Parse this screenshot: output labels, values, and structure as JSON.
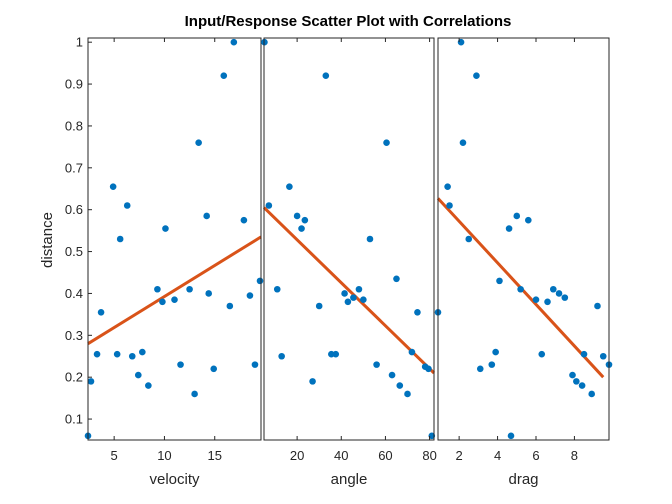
{
  "chart_data": {
    "type": "scatter",
    "title": "Input/Response Scatter Plot with Correlations",
    "ylabel": "distance",
    "ylim": [
      0.05,
      1.01
    ],
    "yticks": [
      0.1,
      0.2,
      0.3,
      0.4,
      0.5,
      0.6,
      0.7,
      0.8,
      0.9,
      1
    ],
    "grid": false,
    "colors": {
      "points": "#0072BD",
      "fit": "#D95319",
      "axes": "#262626"
    },
    "panels": [
      {
        "xlabel": "velocity",
        "xlim": [
          2.4,
          19.6
        ],
        "xticks": [
          5,
          10,
          15
        ],
        "points": [
          [
            2.4,
            0.06
          ],
          [
            2.7,
            0.19
          ],
          [
            3.3,
            0.255
          ],
          [
            3.7,
            0.355
          ],
          [
            4.9,
            0.655
          ],
          [
            5.3,
            0.255
          ],
          [
            5.6,
            0.53
          ],
          [
            6.3,
            0.61
          ],
          [
            6.8,
            0.25
          ],
          [
            7.4,
            0.205
          ],
          [
            7.8,
            0.26
          ],
          [
            8.4,
            0.18
          ],
          [
            9.3,
            0.41
          ],
          [
            9.8,
            0.38
          ],
          [
            10.1,
            0.555
          ],
          [
            11.0,
            0.385
          ],
          [
            11.6,
            0.23
          ],
          [
            12.5,
            0.41
          ],
          [
            13.0,
            0.16
          ],
          [
            13.4,
            0.76
          ],
          [
            14.2,
            0.585
          ],
          [
            14.4,
            0.4
          ],
          [
            14.9,
            0.22
          ],
          [
            15.9,
            0.92
          ],
          [
            16.5,
            0.37
          ],
          [
            16.9,
            1.0
          ],
          [
            17.9,
            0.575
          ],
          [
            18.5,
            0.395
          ],
          [
            19.0,
            0.23
          ],
          [
            19.5,
            0.43
          ]
        ],
        "fit": [
          [
            2.4,
            0.28
          ],
          [
            19.6,
            0.535
          ]
        ]
      },
      {
        "xlabel": "angle",
        "xlim": [
          5,
          82
        ],
        "xticks": [
          20,
          40,
          60,
          80
        ],
        "points": [
          [
            5.2,
            1.0
          ],
          [
            7.2,
            0.61
          ],
          [
            11.0,
            0.41
          ],
          [
            13.0,
            0.25
          ],
          [
            16.5,
            0.655
          ],
          [
            20.0,
            0.585
          ],
          [
            22.0,
            0.555
          ],
          [
            23.5,
            0.575
          ],
          [
            27.0,
            0.19
          ],
          [
            30.0,
            0.37
          ],
          [
            33.0,
            0.92
          ],
          [
            35.5,
            0.255
          ],
          [
            37.5,
            0.255
          ],
          [
            41.5,
            0.4
          ],
          [
            43.0,
            0.38
          ],
          [
            45.5,
            0.39
          ],
          [
            48.0,
            0.41
          ],
          [
            50.0,
            0.385
          ],
          [
            53.0,
            0.53
          ],
          [
            56.0,
            0.23
          ],
          [
            60.5,
            0.76
          ],
          [
            63.0,
            0.205
          ],
          [
            65.0,
            0.435
          ],
          [
            66.5,
            0.18
          ],
          [
            70.0,
            0.16
          ],
          [
            72.0,
            0.26
          ],
          [
            74.5,
            0.355
          ],
          [
            78.0,
            0.225
          ],
          [
            79.5,
            0.22
          ],
          [
            81.0,
            0.06
          ]
        ],
        "fit": [
          [
            5,
            0.605
          ],
          [
            82,
            0.21
          ]
        ]
      },
      {
        "xlabel": "drag",
        "xlim": [
          0.9,
          9.8
        ],
        "xticks": [
          2,
          4,
          6,
          8
        ],
        "points": [
          [
            0.9,
            0.355
          ],
          [
            1.4,
            0.655
          ],
          [
            1.5,
            0.61
          ],
          [
            2.1,
            1.0
          ],
          [
            2.2,
            0.76
          ],
          [
            2.5,
            0.53
          ],
          [
            2.9,
            0.92
          ],
          [
            3.1,
            0.22
          ],
          [
            3.7,
            0.23
          ],
          [
            3.9,
            0.26
          ],
          [
            4.1,
            0.43
          ],
          [
            4.6,
            0.555
          ],
          [
            4.7,
            0.06
          ],
          [
            5.0,
            0.585
          ],
          [
            5.2,
            0.41
          ],
          [
            5.6,
            0.575
          ],
          [
            6.0,
            0.385
          ],
          [
            6.3,
            0.255
          ],
          [
            6.6,
            0.38
          ],
          [
            6.9,
            0.41
          ],
          [
            7.2,
            0.4
          ],
          [
            7.5,
            0.39
          ],
          [
            7.9,
            0.205
          ],
          [
            8.1,
            0.19
          ],
          [
            8.4,
            0.18
          ],
          [
            8.5,
            0.255
          ],
          [
            8.9,
            0.16
          ],
          [
            9.2,
            0.37
          ],
          [
            9.5,
            0.25
          ],
          [
            9.8,
            0.23
          ]
        ],
        "fit": [
          [
            0.9,
            0.627
          ],
          [
            9.5,
            0.2
          ]
        ]
      }
    ]
  }
}
